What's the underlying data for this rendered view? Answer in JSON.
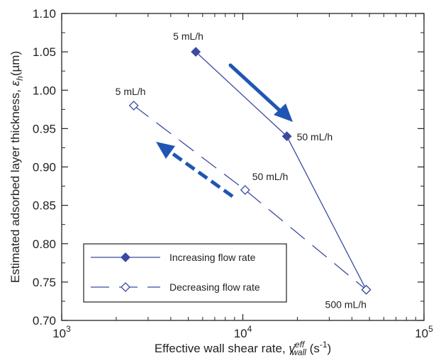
{
  "chart_data": {
    "type": "line",
    "title": "",
    "xlabel": "Effective wall shear rate,",
    "xlabel_symbol": "γ̇",
    "xlabel_superscript": "eff",
    "xlabel_subscript": "wall",
    "xlabel_unit": "(s",
    "xlabel_unit_exp": "-1",
    "xlabel_unit_close": ")",
    "ylabel": "Estimated adsorbed layer thickness,",
    "ylabel_symbol": "ε",
    "ylabel_subscript": "h",
    "ylabel_unit": "(µm)",
    "xscale": "log",
    "xlim": [
      1000,
      100000
    ],
    "ylim": [
      0.7,
      1.1
    ],
    "x_ticks": [
      {
        "base": "10",
        "exp": "3",
        "value": 1000
      },
      {
        "base": "10",
        "exp": "4",
        "value": 10000
      },
      {
        "base": "10",
        "exp": "5",
        "value": 100000
      }
    ],
    "y_ticks": [
      "0.70",
      "0.75",
      "0.80",
      "0.85",
      "0.90",
      "0.95",
      "1.00",
      "1.05",
      "1.10"
    ],
    "series": [
      {
        "name": "Increasing flow rate",
        "marker": "filled-diamond",
        "line": "solid",
        "color": "#3a4aa0",
        "points": [
          {
            "x": 5500,
            "y": 1.05,
            "label": "5 mL/h"
          },
          {
            "x": 17500,
            "y": 0.94,
            "label": "50 mL/h"
          },
          {
            "x": 48000,
            "y": 0.74,
            "label": "500 mL/h"
          }
        ]
      },
      {
        "name": "Decreasing flow rate",
        "marker": "open-diamond",
        "line": "dashed",
        "color": "#3a4aa0",
        "points": [
          {
            "x": 2500,
            "y": 0.98,
            "label": "5 mL/h"
          },
          {
            "x": 10300,
            "y": 0.87,
            "label": "50 mL/h"
          },
          {
            "x": 48000,
            "y": 0.74,
            "label": ""
          }
        ]
      }
    ],
    "arrows": [
      {
        "style": "solid",
        "direction": "down-right",
        "color": "#1f56b4"
      },
      {
        "style": "dashed",
        "direction": "up-left",
        "color": "#1f56b4"
      }
    ],
    "legend": {
      "placement": "bottom-left"
    },
    "grid": false
  }
}
